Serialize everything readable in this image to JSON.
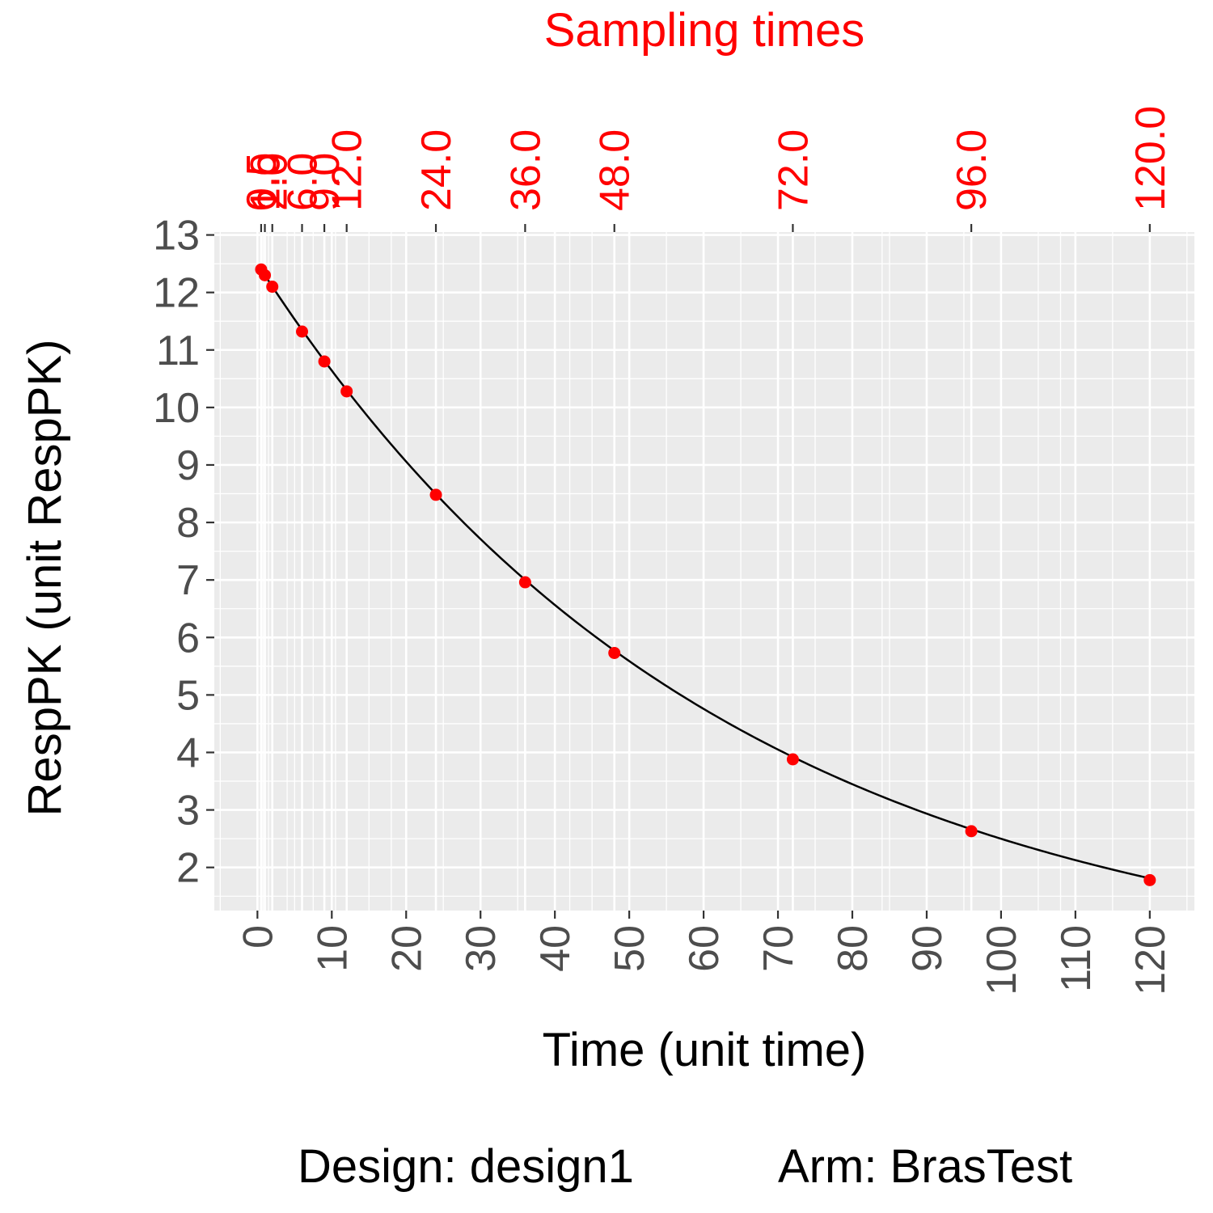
{
  "chart_data": {
    "type": "line",
    "title": "",
    "xlabel": "Time (unit time)",
    "ylabel": "RespPK (unit RespPK)",
    "x2label": "Sampling times",
    "xlim": [
      -5.8,
      126
    ],
    "ylim": [
      1.25,
      13.05
    ],
    "x_ticks": [
      0,
      10,
      20,
      30,
      40,
      50,
      60,
      70,
      80,
      90,
      100,
      110,
      120
    ],
    "x_tick_labels": [
      "0",
      "10",
      "20",
      "30",
      "40",
      "50",
      "60",
      "70",
      "80",
      "90",
      "100",
      "110",
      "120"
    ],
    "y_ticks": [
      2,
      3,
      4,
      5,
      6,
      7,
      8,
      9,
      10,
      11,
      12,
      13
    ],
    "y_tick_labels": [
      "2",
      "3",
      "4",
      "5",
      "6",
      "7",
      "8",
      "9",
      "10",
      "11",
      "12",
      "13"
    ],
    "x2_ticks": [
      0.5,
      1,
      2,
      6,
      9,
      12,
      24,
      36,
      48,
      72,
      96,
      120
    ],
    "x2_tick_labels": [
      "0.5",
      "1.0",
      "2.0",
      "6.0",
      "9.0",
      "12.0",
      "24.0",
      "36.0",
      "48.0",
      "72.0",
      "96.0",
      "120.0"
    ],
    "grid": true,
    "legend": "none",
    "series": [
      {
        "kind": "line",
        "color": "#000000",
        "C0": 12.5,
        "k": 0.0161
      },
      {
        "kind": "points",
        "color": "#ff0000",
        "x": [
          0.5,
          1,
          2,
          6,
          9,
          12,
          24,
          36,
          48,
          72,
          96,
          120
        ],
        "y": [
          12.4,
          12.3,
          12.1,
          11.32,
          10.8,
          10.28,
          8.48,
          6.96,
          5.73,
          3.88,
          2.63,
          1.78
        ]
      }
    ],
    "captions": {
      "design": "Design: design1",
      "arm": "Arm: BrasTest"
    },
    "colors": {
      "panel_bg": "#ebebeb",
      "grid": "#ffffff",
      "tick_text": "#4d4d4d",
      "accent": "#ff0000"
    }
  }
}
